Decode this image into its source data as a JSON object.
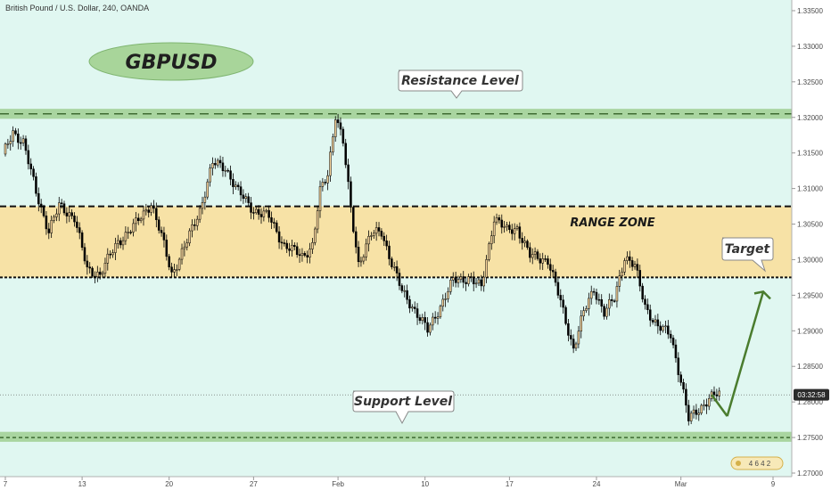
{
  "header": {
    "symbol_line": "British Pound / U.S. Dollar, 240, OANDA"
  },
  "colors": {
    "background": "#e0f7f1",
    "range_fill": "#f7e2a6",
    "level_fill": "#a9d5a0",
    "bull_candle": "#f5d29a",
    "bear_candle": "#000000",
    "arrow": "#4a7c2e",
    "logo_fill": "#a8d59a"
  },
  "chart_data": {
    "type": "candlestick",
    "symbol": "GBPUSD",
    "timeframe": "240",
    "ylim": [
      1.2695,
      1.3365
    ],
    "y_ticks": [
      "1.33500",
      "1.33000",
      "1.32500",
      "1.32000",
      "1.31500",
      "1.31000",
      "1.30500",
      "1.30000",
      "1.29500",
      "1.29000",
      "1.28500",
      "1.28000",
      "1.27500",
      "1.27000"
    ],
    "x_ticks": [
      {
        "label": "7",
        "index": 0
      },
      {
        "label": "13",
        "index": 30
      },
      {
        "label": "20",
        "index": 64
      },
      {
        "label": "27",
        "index": 97
      },
      {
        "label": "Feb",
        "index": 130
      },
      {
        "label": "10",
        "index": 164
      },
      {
        "label": "17",
        "index": 197
      },
      {
        "label": "24",
        "index": 231
      },
      {
        "label": "Mar",
        "index": 264
      },
      {
        "label": "9",
        "index": 300
      }
    ],
    "candle_count": 280,
    "anchors": [
      {
        "i": 0,
        "p": 1.3145
      },
      {
        "i": 4,
        "p": 1.318
      },
      {
        "i": 8,
        "p": 1.3165
      },
      {
        "i": 13,
        "p": 1.3095
      },
      {
        "i": 18,
        "p": 1.304
      },
      {
        "i": 22,
        "p": 1.3075
      },
      {
        "i": 28,
        "p": 1.306
      },
      {
        "i": 33,
        "p": 1.2985
      },
      {
        "i": 38,
        "p": 1.298
      },
      {
        "i": 45,
        "p": 1.3025
      },
      {
        "i": 52,
        "p": 1.305
      },
      {
        "i": 58,
        "p": 1.308
      },
      {
        "i": 63,
        "p": 1.302
      },
      {
        "i": 66,
        "p": 1.298
      },
      {
        "i": 72,
        "p": 1.3025
      },
      {
        "i": 77,
        "p": 1.307
      },
      {
        "i": 82,
        "p": 1.3135
      },
      {
        "i": 87,
        "p": 1.313
      },
      {
        "i": 92,
        "p": 1.3095
      },
      {
        "i": 98,
        "p": 1.307
      },
      {
        "i": 104,
        "p": 1.306
      },
      {
        "i": 110,
        "p": 1.302
      },
      {
        "i": 117,
        "p": 1.3005
      },
      {
        "i": 121,
        "p": 1.302
      },
      {
        "i": 124,
        "p": 1.3095
      },
      {
        "i": 127,
        "p": 1.312
      },
      {
        "i": 130,
        "p": 1.3205
      },
      {
        "i": 133,
        "p": 1.3165
      },
      {
        "i": 136,
        "p": 1.307
      },
      {
        "i": 139,
        "p": 1.2995
      },
      {
        "i": 144,
        "p": 1.3035
      },
      {
        "i": 148,
        "p": 1.304
      },
      {
        "i": 152,
        "p": 1.2995
      },
      {
        "i": 156,
        "p": 1.2955
      },
      {
        "i": 160,
        "p": 1.2935
      },
      {
        "i": 166,
        "p": 1.29
      },
      {
        "i": 171,
        "p": 1.2935
      },
      {
        "i": 176,
        "p": 1.297
      },
      {
        "i": 182,
        "p": 1.2975
      },
      {
        "i": 187,
        "p": 1.296
      },
      {
        "i": 192,
        "p": 1.306
      },
      {
        "i": 197,
        "p": 1.304
      },
      {
        "i": 201,
        "p": 1.3045
      },
      {
        "i": 206,
        "p": 1.3005
      },
      {
        "i": 213,
        "p": 1.3
      },
      {
        "i": 218,
        "p": 1.294
      },
      {
        "i": 223,
        "p": 1.2875
      },
      {
        "i": 227,
        "p": 1.2925
      },
      {
        "i": 231,
        "p": 1.296
      },
      {
        "i": 235,
        "p": 1.2925
      },
      {
        "i": 239,
        "p": 1.2945
      },
      {
        "i": 243,
        "p": 1.3005
      },
      {
        "i": 247,
        "p": 1.299
      },
      {
        "i": 251,
        "p": 1.2935
      },
      {
        "i": 256,
        "p": 1.2905
      },
      {
        "i": 261,
        "p": 1.2895
      },
      {
        "i": 265,
        "p": 1.283
      },
      {
        "i": 268,
        "p": 1.2775
      },
      {
        "i": 272,
        "p": 1.279
      },
      {
        "i": 276,
        "p": 1.2805
      },
      {
        "i": 279,
        "p": 1.281
      }
    ],
    "levels": {
      "resistance": {
        "label": "Resistance Level",
        "price": 1.3205,
        "band": [
          1.3198,
          1.3212
        ]
      },
      "range_top": 1.3075,
      "range_bottom": 1.2975,
      "support": {
        "label": "Support Level",
        "price": 1.275,
        "band": [
          1.2744,
          1.2758
        ]
      }
    },
    "range_label": "RANGE ZONE",
    "target_label": "Target",
    "target_price": 1.297,
    "arrow_from_price": 1.278,
    "current_price": 1.281,
    "current_time_label": "03:32:58",
    "logo_text": "GBPUSD"
  },
  "badge": {
    "text": "4 6 4 2"
  }
}
